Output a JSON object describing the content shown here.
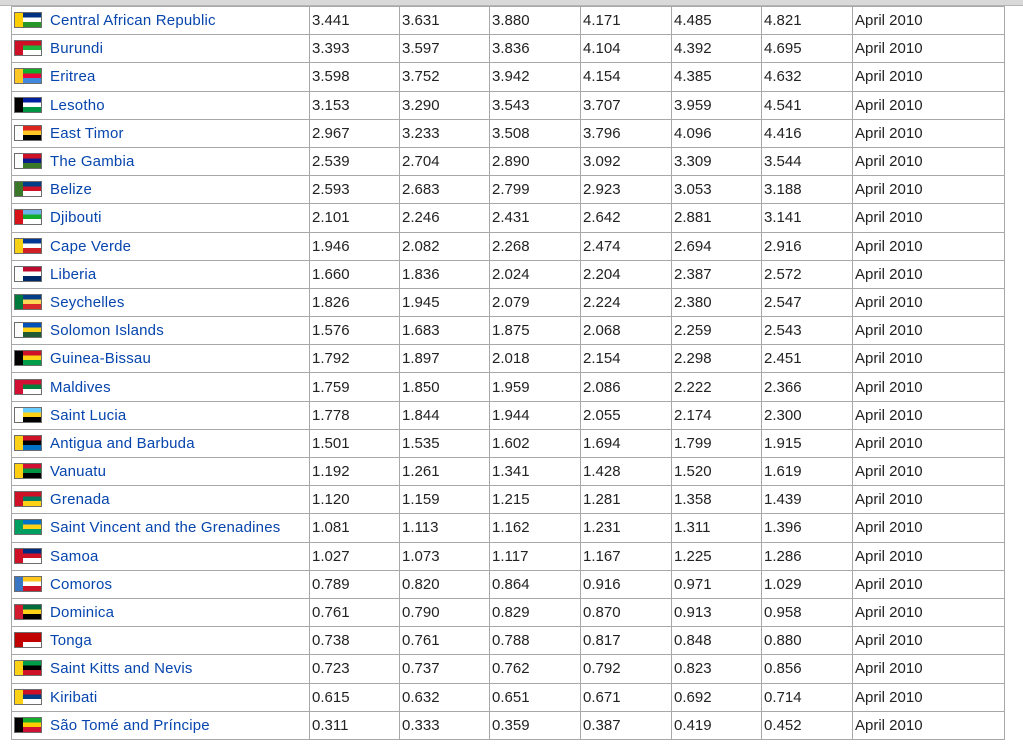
{
  "table": {
    "rows": [
      {
        "country": "Central African Republic",
        "flag_colors": [
          "#003082",
          "#ffffff",
          "#289728",
          "#ffce00"
        ],
        "values": [
          "3.441",
          "3.631",
          "3.880",
          "4.171",
          "4.485",
          "4.821"
        ],
        "date": "April 2010"
      },
      {
        "country": "Burundi",
        "flag_colors": [
          "#ce1126",
          "#1eb53a",
          "#ffffff",
          "#ce1126"
        ],
        "values": [
          "3.393",
          "3.597",
          "3.836",
          "4.104",
          "4.392",
          "4.695"
        ],
        "date": "April 2010"
      },
      {
        "country": "Eritrea",
        "flag_colors": [
          "#12ad2b",
          "#ea0437",
          "#4189dd",
          "#ffc726"
        ],
        "values": [
          "3.598",
          "3.752",
          "3.942",
          "4.154",
          "4.385",
          "4.632"
        ],
        "date": "April 2010"
      },
      {
        "country": "Lesotho",
        "flag_colors": [
          "#00209f",
          "#ffffff",
          "#009543",
          "#000000"
        ],
        "values": [
          "3.153",
          "3.290",
          "3.543",
          "3.707",
          "3.959",
          "4.541"
        ],
        "date": "April 2010"
      },
      {
        "country": "East Timor",
        "flag_colors": [
          "#dc241f",
          "#ffc726",
          "#000000",
          "#ffffff"
        ],
        "values": [
          "2.967",
          "3.233",
          "3.508",
          "3.796",
          "4.096",
          "4.416"
        ],
        "date": "April 2010"
      },
      {
        "country": "The Gambia",
        "flag_colors": [
          "#ce1126",
          "#0c1c8c",
          "#3a7728",
          "#ffffff"
        ],
        "values": [
          "2.539",
          "2.704",
          "2.890",
          "3.092",
          "3.309",
          "3.544"
        ],
        "date": "April 2010"
      },
      {
        "country": "Belize",
        "flag_colors": [
          "#003f87",
          "#ce1126",
          "#ffffff",
          "#3a7728"
        ],
        "values": [
          "2.593",
          "2.683",
          "2.799",
          "2.923",
          "3.053",
          "3.188"
        ],
        "date": "April 2010"
      },
      {
        "country": "Djibouti",
        "flag_colors": [
          "#6ab2e7",
          "#12ad2b",
          "#ffffff",
          "#d7141a"
        ],
        "values": [
          "2.101",
          "2.246",
          "2.431",
          "2.642",
          "2.881",
          "3.141"
        ],
        "date": "April 2010"
      },
      {
        "country": "Cape Verde",
        "flag_colors": [
          "#003893",
          "#ffffff",
          "#cf2027",
          "#f7d116"
        ],
        "values": [
          "1.946",
          "2.082",
          "2.268",
          "2.474",
          "2.694",
          "2.916"
        ],
        "date": "April 2010"
      },
      {
        "country": "Liberia",
        "flag_colors": [
          "#bf0a30",
          "#ffffff",
          "#002868",
          "#ffffff"
        ],
        "values": [
          "1.660",
          "1.836",
          "2.024",
          "2.204",
          "2.387",
          "2.572"
        ],
        "date": "April 2010"
      },
      {
        "country": "Seychelles",
        "flag_colors": [
          "#003f87",
          "#fcd856",
          "#d62828",
          "#007a3d"
        ],
        "values": [
          "1.826",
          "1.945",
          "2.079",
          "2.224",
          "2.380",
          "2.547"
        ],
        "date": "April 2010"
      },
      {
        "country": "Solomon Islands",
        "flag_colors": [
          "#0051ba",
          "#fcd116",
          "#215b33",
          "#ffffff"
        ],
        "values": [
          "1.576",
          "1.683",
          "1.875",
          "2.068",
          "2.259",
          "2.543"
        ],
        "date": "April 2010"
      },
      {
        "country": "Guinea-Bissau",
        "flag_colors": [
          "#ce1126",
          "#fcd116",
          "#009e49",
          "#000000"
        ],
        "values": [
          "1.792",
          "1.897",
          "2.018",
          "2.154",
          "2.298",
          "2.451"
        ],
        "date": "April 2010"
      },
      {
        "country": "Maldives",
        "flag_colors": [
          "#d21034",
          "#007e3a",
          "#ffffff",
          "#d21034"
        ],
        "values": [
          "1.759",
          "1.850",
          "1.959",
          "2.086",
          "2.222",
          "2.366"
        ],
        "date": "April 2010"
      },
      {
        "country": "Saint Lucia",
        "flag_colors": [
          "#66ccff",
          "#fcd116",
          "#000000",
          "#ffffff"
        ],
        "values": [
          "1.778",
          "1.844",
          "1.944",
          "2.055",
          "2.174",
          "2.300"
        ],
        "date": "April 2010"
      },
      {
        "country": "Antigua and Barbuda",
        "flag_colors": [
          "#ce1126",
          "#000000",
          "#0072c6",
          "#fcd116"
        ],
        "values": [
          "1.501",
          "1.535",
          "1.602",
          "1.694",
          "1.799",
          "1.915"
        ],
        "date": "April 2010"
      },
      {
        "country": "Vanuatu",
        "flag_colors": [
          "#d21034",
          "#009543",
          "#000000",
          "#fdce12"
        ],
        "values": [
          "1.192",
          "1.261",
          "1.341",
          "1.428",
          "1.520",
          "1.619"
        ],
        "date": "April 2010"
      },
      {
        "country": "Grenada",
        "flag_colors": [
          "#ce1126",
          "#007a5e",
          "#fcd116",
          "#ce1126"
        ],
        "values": [
          "1.120",
          "1.159",
          "1.215",
          "1.281",
          "1.358",
          "1.439"
        ],
        "date": "April 2010"
      },
      {
        "country": "Saint Vincent and the Grenadines",
        "flag_colors": [
          "#0072c6",
          "#fcd116",
          "#009e60",
          "#009e60"
        ],
        "values": [
          "1.081",
          "1.113",
          "1.162",
          "1.231",
          "1.311",
          "1.396"
        ],
        "date": "April 2010"
      },
      {
        "country": "Samoa",
        "flag_colors": [
          "#002b7f",
          "#ce1126",
          "#ffffff",
          "#ce1126"
        ],
        "values": [
          "1.027",
          "1.073",
          "1.117",
          "1.167",
          "1.225",
          "1.286"
        ],
        "date": "April 2010"
      },
      {
        "country": "Comoros",
        "flag_colors": [
          "#ffc61e",
          "#ffffff",
          "#ce1126",
          "#3a75c4"
        ],
        "values": [
          "0.789",
          "0.820",
          "0.864",
          "0.916",
          "0.971",
          "1.029"
        ],
        "date": "April 2010"
      },
      {
        "country": "Dominica",
        "flag_colors": [
          "#006b3f",
          "#fcd116",
          "#000000",
          "#d41c30"
        ],
        "values": [
          "0.761",
          "0.790",
          "0.829",
          "0.870",
          "0.913",
          "0.958"
        ],
        "date": "April 2010"
      },
      {
        "country": "Tonga",
        "flag_colors": [
          "#c10000",
          "#c10000",
          "#ffffff",
          "#c10000"
        ],
        "values": [
          "0.738",
          "0.761",
          "0.788",
          "0.817",
          "0.848",
          "0.880"
        ],
        "date": "April 2010"
      },
      {
        "country": "Saint Kitts and Nevis",
        "flag_colors": [
          "#009e49",
          "#000000",
          "#ce1126",
          "#fcd116"
        ],
        "values": [
          "0.723",
          "0.737",
          "0.762",
          "0.792",
          "0.823",
          "0.856"
        ],
        "date": "April 2010"
      },
      {
        "country": "Kiribati",
        "flag_colors": [
          "#ce1126",
          "#003f87",
          "#ffffff",
          "#fcd116"
        ],
        "values": [
          "0.615",
          "0.632",
          "0.651",
          "0.671",
          "0.692",
          "0.714"
        ],
        "date": "April 2010"
      },
      {
        "country": "São Tomé and Príncipe",
        "flag_colors": [
          "#12ad2b",
          "#ffce00",
          "#d21034",
          "#000000"
        ],
        "values": [
          "0.311",
          "0.333",
          "0.359",
          "0.387",
          "0.419",
          "0.452"
        ],
        "date": "April 2010"
      }
    ]
  }
}
